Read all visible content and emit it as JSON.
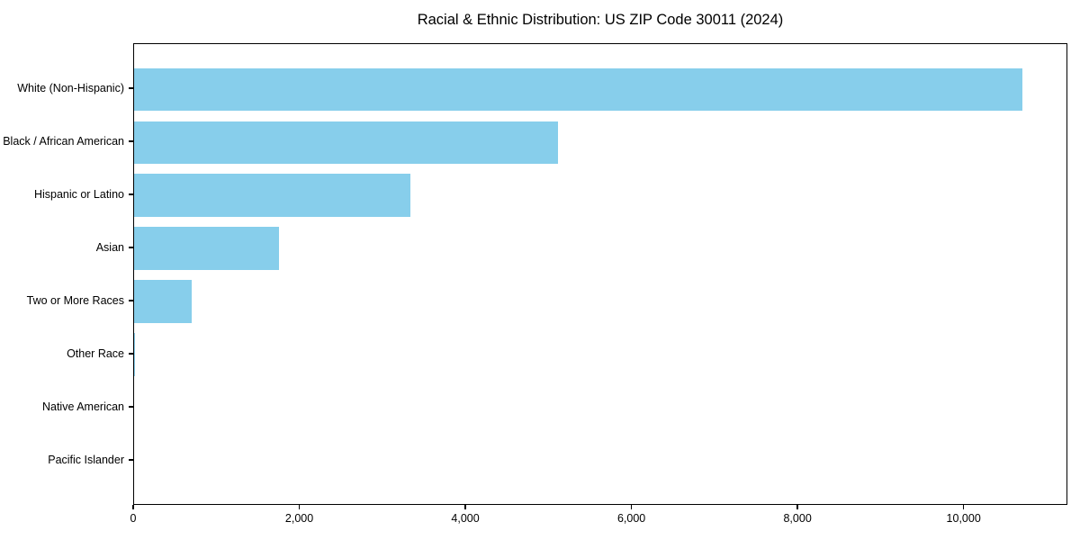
{
  "chart_data": {
    "type": "bar",
    "orientation": "horizontal",
    "title": "Racial & Ethnic Distribution: US ZIP Code 30011 (2024)",
    "categories": [
      "White (Non-Hispanic)",
      "Black / African American",
      "Hispanic or Latino",
      "Asian",
      "Two or More Races",
      "Other Race",
      "Native American",
      "Pacific Islander"
    ],
    "values": [
      10700,
      5100,
      3325,
      1745,
      695,
      15,
      0,
      0
    ],
    "xlabel": "",
    "ylabel": "",
    "xlim": [
      0,
      11250
    ],
    "xticks": [
      0,
      2000,
      4000,
      6000,
      8000,
      10000
    ],
    "xtick_labels": [
      "0",
      "2,000",
      "4,000",
      "6,000",
      "8,000",
      "10,000"
    ],
    "bar_color": "#87CEEB",
    "frame_color": "#000000",
    "background_color": "#ffffff",
    "grid": false,
    "legend_position": "none"
  }
}
